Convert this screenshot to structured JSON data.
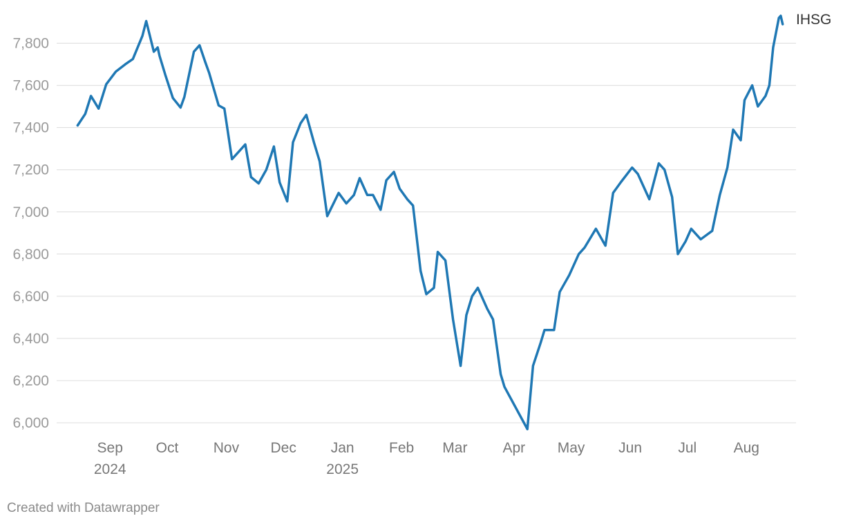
{
  "chart_data": {
    "type": "line",
    "series": [
      {
        "name": "IHSG",
        "color": "#1f78b4",
        "x": [
          "2024-08-15",
          "2024-08-19",
          "2024-08-22",
          "2024-08-26",
          "2024-08-30",
          "2024-09-04",
          "2024-09-09",
          "2024-09-13",
          "2024-09-18",
          "2024-09-20",
          "2024-09-24",
          "2024-09-26",
          "2024-09-27",
          "2024-09-30",
          "2024-10-04",
          "2024-10-08",
          "2024-10-10",
          "2024-10-15",
          "2024-10-18",
          "2024-10-21",
          "2024-10-23",
          "2024-10-28",
          "2024-10-31",
          "2024-11-04",
          "2024-11-07",
          "2024-11-11",
          "2024-11-14",
          "2024-11-18",
          "2024-11-22",
          "2024-11-26",
          "2024-11-29",
          "2024-12-03",
          "2024-12-06",
          "2024-12-10",
          "2024-12-13",
          "2024-12-17",
          "2024-12-20",
          "2024-12-24",
          "2024-12-30",
          "2025-01-03",
          "2025-01-07",
          "2025-01-10",
          "2025-01-14",
          "2025-01-17",
          "2025-01-21",
          "2025-01-24",
          "2025-01-28",
          "2025-01-31",
          "2025-02-04",
          "2025-02-07",
          "2025-02-11",
          "2025-02-14",
          "2025-02-18",
          "2025-02-20",
          "2025-02-24",
          "2025-02-28",
          "2025-03-04",
          "2025-03-07",
          "2025-03-10",
          "2025-03-13",
          "2025-03-18",
          "2025-03-21",
          "2025-03-25",
          "2025-03-27",
          "2025-04-08",
          "2025-04-11",
          "2025-04-15",
          "2025-04-17",
          "2025-04-22",
          "2025-04-25",
          "2025-04-30",
          "2025-05-05",
          "2025-05-08",
          "2025-05-14",
          "2025-05-19",
          "2025-05-23",
          "2025-05-27",
          "2025-06-02",
          "2025-06-05",
          "2025-06-11",
          "2025-06-16",
          "2025-06-19",
          "2025-06-23",
          "2025-06-26",
          "2025-06-30",
          "2025-07-03",
          "2025-07-08",
          "2025-07-14",
          "2025-07-18",
          "2025-07-22",
          "2025-07-25",
          "2025-07-29",
          "2025-07-31",
          "2025-08-04",
          "2025-08-07",
          "2025-08-11",
          "2025-08-13",
          "2025-08-15",
          "2025-08-18",
          "2025-08-19",
          "2025-08-20"
        ],
        "values": [
          7410,
          7465,
          7550,
          7490,
          7605,
          7665,
          7700,
          7725,
          7835,
          7905,
          7760,
          7780,
          7740,
          7650,
          7540,
          7495,
          7545,
          7760,
          7790,
          7710,
          7660,
          7505,
          7490,
          7250,
          7280,
          7320,
          7165,
          7135,
          7200,
          7310,
          7140,
          7050,
          7330,
          7420,
          7460,
          7330,
          7240,
          6980,
          7090,
          7040,
          7080,
          7160,
          7080,
          7080,
          7010,
          7150,
          7190,
          7110,
          7060,
          7030,
          6720,
          6610,
          6640,
          6810,
          6770,
          6490,
          6270,
          6510,
          6600,
          6640,
          6540,
          6490,
          6230,
          6170,
          5970,
          6270,
          6380,
          6440,
          6440,
          6620,
          6700,
          6800,
          6830,
          6920,
          6840,
          7090,
          7140,
          7210,
          7180,
          7060,
          7230,
          7200,
          7070,
          6800,
          6860,
          6920,
          6870,
          6910,
          7080,
          7210,
          7390,
          7340,
          7530,
          7600,
          7500,
          7550,
          7600,
          7780,
          7920,
          7930,
          7890
        ]
      }
    ],
    "x_tick_labels": [
      {
        "date": "2024-09-01",
        "label": "Sep",
        "sublabel": "2024"
      },
      {
        "date": "2024-10-01",
        "label": "Oct",
        "sublabel": ""
      },
      {
        "date": "2024-11-01",
        "label": "Nov",
        "sublabel": ""
      },
      {
        "date": "2024-12-01",
        "label": "Dec",
        "sublabel": ""
      },
      {
        "date": "2025-01-01",
        "label": "Jan",
        "sublabel": "2025"
      },
      {
        "date": "2025-02-01",
        "label": "Feb",
        "sublabel": ""
      },
      {
        "date": "2025-03-01",
        "label": "Mar",
        "sublabel": ""
      },
      {
        "date": "2025-04-01",
        "label": "Apr",
        "sublabel": ""
      },
      {
        "date": "2025-05-01",
        "label": "May",
        "sublabel": ""
      },
      {
        "date": "2025-06-01",
        "label": "Jun",
        "sublabel": ""
      },
      {
        "date": "2025-07-01",
        "label": "Jul",
        "sublabel": ""
      },
      {
        "date": "2025-08-01",
        "label": "Aug",
        "sublabel": ""
      }
    ],
    "y_ticks": [
      6000,
      6200,
      6400,
      6600,
      6800,
      7000,
      7200,
      7400,
      7600,
      7800
    ],
    "y_tick_labels": [
      "6,000",
      "6,200",
      "6,400",
      "6,600",
      "6,800",
      "7,000",
      "7,200",
      "7,400",
      "7,600",
      "7,800"
    ],
    "ylim": [
      6000,
      7950
    ],
    "xlim": [
      "2024-08-04",
      "2025-08-27"
    ],
    "grid": "horizontal",
    "title": "",
    "xlabel": "",
    "ylabel": "",
    "series_label_placement": "end-of-line"
  },
  "credit": "Created with Datawrapper"
}
